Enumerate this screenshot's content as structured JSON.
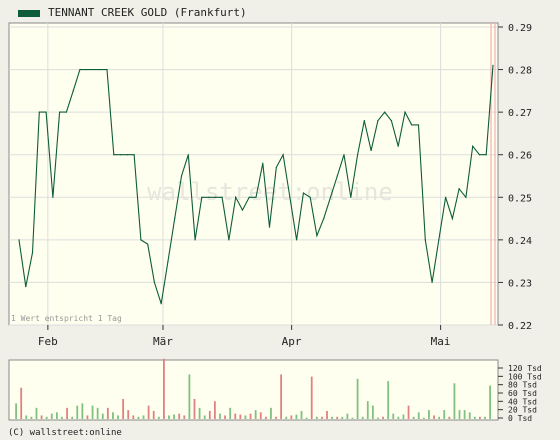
{
  "legend": {
    "label": "TENNANT CREEK GOLD (Frankfurt)",
    "color": "#0d5c3a"
  },
  "note": "1 Wert entspricht 1 Tag",
  "watermark": "wallstreet:online",
  "copyright": "(C) wallstreet:online",
  "colors": {
    "line": "#0d5c3a",
    "vol_up": "#80c080",
    "vol_down": "#e08080",
    "plot_bg": "#ffffef",
    "grid": "#dddddd",
    "marker": "#f0b0b0"
  },
  "chart_data": [
    {
      "type": "line",
      "title": "",
      "series": [
        {
          "name": "TENNANT CREEK GOLD (Frankfurt)",
          "values": [
            0.24,
            0.229,
            0.237,
            0.27,
            0.27,
            0.25,
            0.27,
            0.27,
            0.275,
            0.28,
            0.28,
            0.28,
            0.28,
            0.28,
            0.26,
            0.26,
            0.26,
            0.26,
            0.24,
            0.239,
            0.23,
            0.225,
            0.235,
            0.245,
            0.255,
            0.26,
            0.24,
            0.25,
            0.25,
            0.25,
            0.25,
            0.24,
            0.25,
            0.247,
            0.25,
            0.25,
            0.258,
            0.243,
            0.257,
            0.26,
            0.25,
            0.24,
            0.251,
            0.25,
            0.241,
            0.245,
            0.25,
            0.255,
            0.26,
            0.25,
            0.26,
            0.268,
            0.261,
            0.268,
            0.27,
            0.268,
            0.262,
            0.27,
            0.267,
            0.267,
            0.24,
            0.23,
            0.24,
            0.25,
            0.245,
            0.252,
            0.25,
            0.262,
            0.26,
            0.26,
            0.281
          ]
        }
      ],
      "x_ticks": [
        {
          "label": "Feb",
          "index": 5
        },
        {
          "label": "Mär",
          "index": 22
        },
        {
          "label": "Apr",
          "index": 41
        },
        {
          "label": "Mai",
          "index": 63
        }
      ],
      "y_ticks": [
        "0.22",
        "0.23",
        "0.24",
        "0.25",
        "0.26",
        "0.27",
        "0.28",
        "0.29"
      ],
      "ylim": [
        0.22,
        0.29
      ],
      "grid": true
    },
    {
      "type": "bar",
      "title": "",
      "y_ticks": [
        "0 Tsd",
        "20 Tsd",
        "40 Tsd",
        "60 Tsd",
        "80 Tsd",
        "100 Tsd",
        "120 Tsd"
      ],
      "ylim": [
        0,
        130
      ],
      "values": [
        35,
        70,
        8,
        5,
        25,
        8,
        5,
        12,
        15,
        5,
        25,
        5,
        30,
        35,
        8,
        30,
        25,
        12,
        25,
        15,
        8,
        45,
        20,
        8,
        5,
        8,
        30,
        18,
        5,
        135,
        8,
        10,
        12,
        8,
        100,
        45,
        25,
        8,
        18,
        40,
        12,
        8,
        25,
        12,
        10,
        8,
        12,
        20,
        15,
        5,
        25,
        5,
        100,
        5,
        8,
        10,
        18,
        3,
        95,
        5,
        5,
        18,
        5,
        5,
        5,
        12,
        3,
        90,
        5,
        40,
        30,
        3,
        5,
        85,
        12,
        5,
        10,
        30,
        5,
        15,
        3,
        20,
        8,
        5,
        20,
        5,
        80,
        20,
        20,
        15,
        5,
        5,
        5,
        75
      ],
      "directions": [
        1,
        0,
        1,
        1,
        1,
        0,
        1,
        1,
        1,
        1,
        0,
        1,
        1,
        1,
        0,
        1,
        1,
        1,
        0,
        1,
        1,
        0,
        0,
        0,
        1,
        1,
        0,
        0,
        1,
        0,
        1,
        1,
        0,
        0,
        1,
        0,
        1,
        1,
        0,
        0,
        1,
        0,
        1,
        0,
        0,
        1,
        0,
        1,
        0,
        0,
        1,
        0,
        0,
        1,
        0,
        1,
        1,
        1,
        0,
        1,
        0,
        0,
        1,
        0,
        1,
        1,
        1,
        1,
        1,
        1,
        1,
        1,
        0,
        1,
        1,
        1,
        1,
        0,
        1,
        1,
        1,
        1,
        0,
        1,
        1,
        0,
        1,
        1,
        1,
        1,
        1,
        0,
        1,
        1
      ]
    }
  ]
}
